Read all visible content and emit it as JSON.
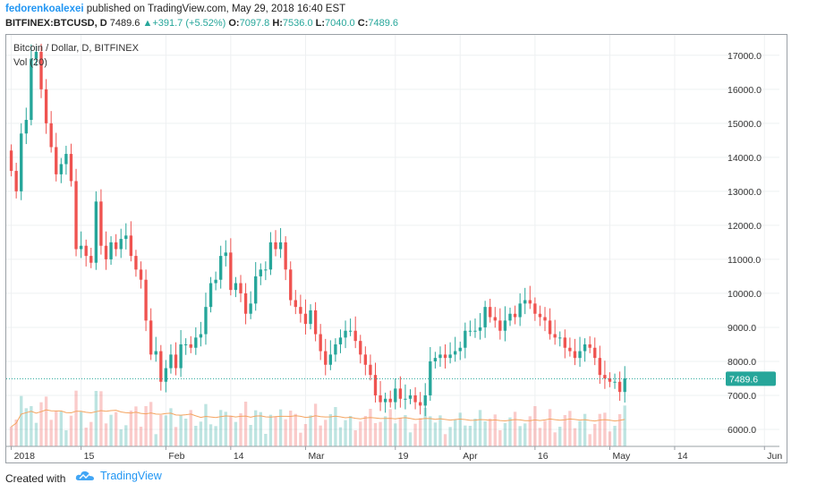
{
  "header": {
    "author": "fedorenkoalexei",
    "published_text": "published on TradingView.com, May 29, 2018 16:40 EST",
    "symbol": "BITFINEX:BTCUSD, D",
    "last": "7489.6",
    "change": "+391.7 (+5.52%)",
    "open_label": "O:",
    "open": "7097.8",
    "high_label": "H:",
    "high": "7536.0",
    "low_label": "L:",
    "low": "7040.0",
    "close_label": "C:",
    "close": "7489.6"
  },
  "legend": {
    "title": "Bitcoin / Dollar, D, BITFINEX",
    "volume": "Vol (20)"
  },
  "footer": {
    "created_with": "Created with",
    "brand": "TradingView"
  },
  "colors": {
    "up": "#26a69a",
    "down": "#ef5350",
    "vol_ma": "#f4a460",
    "price_line": "#26a69a",
    "price_tag": "#26a69a"
  },
  "chart_data": {
    "type": "candlestick",
    "title": "Bitcoin / Dollar, D, BITFINEX",
    "y_axis": {
      "ticks": [
        "6000.0",
        "7000.0",
        "8000.0",
        "9000.0",
        "10000.0",
        "11000.0",
        "12000.0",
        "13000.0",
        "14000.0",
        "15000.0",
        "16000.0",
        "17000.0"
      ],
      "range": [
        5500,
        17600
      ],
      "side": "right"
    },
    "x_axis": {
      "ticks": [
        {
          "label": "2018",
          "date": "2018-01-01"
        },
        {
          "label": "15",
          "date": "2018-01-15"
        },
        {
          "label": "Feb",
          "date": "2018-02-01"
        },
        {
          "label": "14",
          "date": "2018-02-14"
        },
        {
          "label": "Mar",
          "date": "2018-03-01"
        },
        {
          "label": "19",
          "date": "2018-03-19"
        },
        {
          "label": "Apr",
          "date": "2018-04-01"
        },
        {
          "label": "16",
          "date": "2018-04-16"
        },
        {
          "label": "May",
          "date": "2018-05-01"
        },
        {
          "label": "14",
          "date": "2018-05-14"
        },
        {
          "label": "Jun",
          "date": "2018-06-01"
        }
      ],
      "range": [
        "2017-12-31",
        "2018-06-04"
      ]
    },
    "last_price": 7489.6,
    "last_price_label": "7489.6",
    "grid": true,
    "closes": [
      13600,
      13000,
      14700,
      15100,
      16900,
      17100,
      16000,
      15000,
      14300,
      13500,
      13800,
      14100,
      13300,
      11300,
      11400,
      11100,
      10900,
      12700,
      11400,
      11000,
      11500,
      11300,
      11600,
      11700,
      11100,
      10700,
      10400,
      9200,
      8200,
      8300,
      7400,
      7800,
      8200,
      7800,
      8500,
      8500,
      8400,
      8700,
      8800,
      9600,
      10300,
      10400,
      11100,
      11200,
      10100,
      10300,
      10000,
      9400,
      9700,
      10500,
      10700,
      10700,
      11500,
      11300,
      11500,
      10700,
      9800,
      9600,
      9400,
      9100,
      9500,
      8800,
      8300,
      7900,
      8200,
      8500,
      8700,
      8900,
      8900,
      8600,
      8200,
      7900,
      7600,
      7000,
      6800,
      6900,
      6800,
      7200,
      6900,
      6900,
      7000,
      6800,
      6700,
      7000,
      8000,
      8100,
      8200,
      8100,
      8200,
      8300,
      8400,
      8900,
      8900,
      8900,
      9000,
      9600,
      9300,
      9200,
      8900,
      9200,
      9400,
      9300,
      9700,
      9800,
      9700,
      9400,
      9300,
      9200,
      8800,
      8700,
      8700,
      8400,
      8300,
      8100,
      8300,
      8500,
      8400,
      8100,
      7600,
      7500,
      7400,
      7400,
      7100,
      7500
    ],
    "volume_ma_label": "Vol (20)"
  }
}
